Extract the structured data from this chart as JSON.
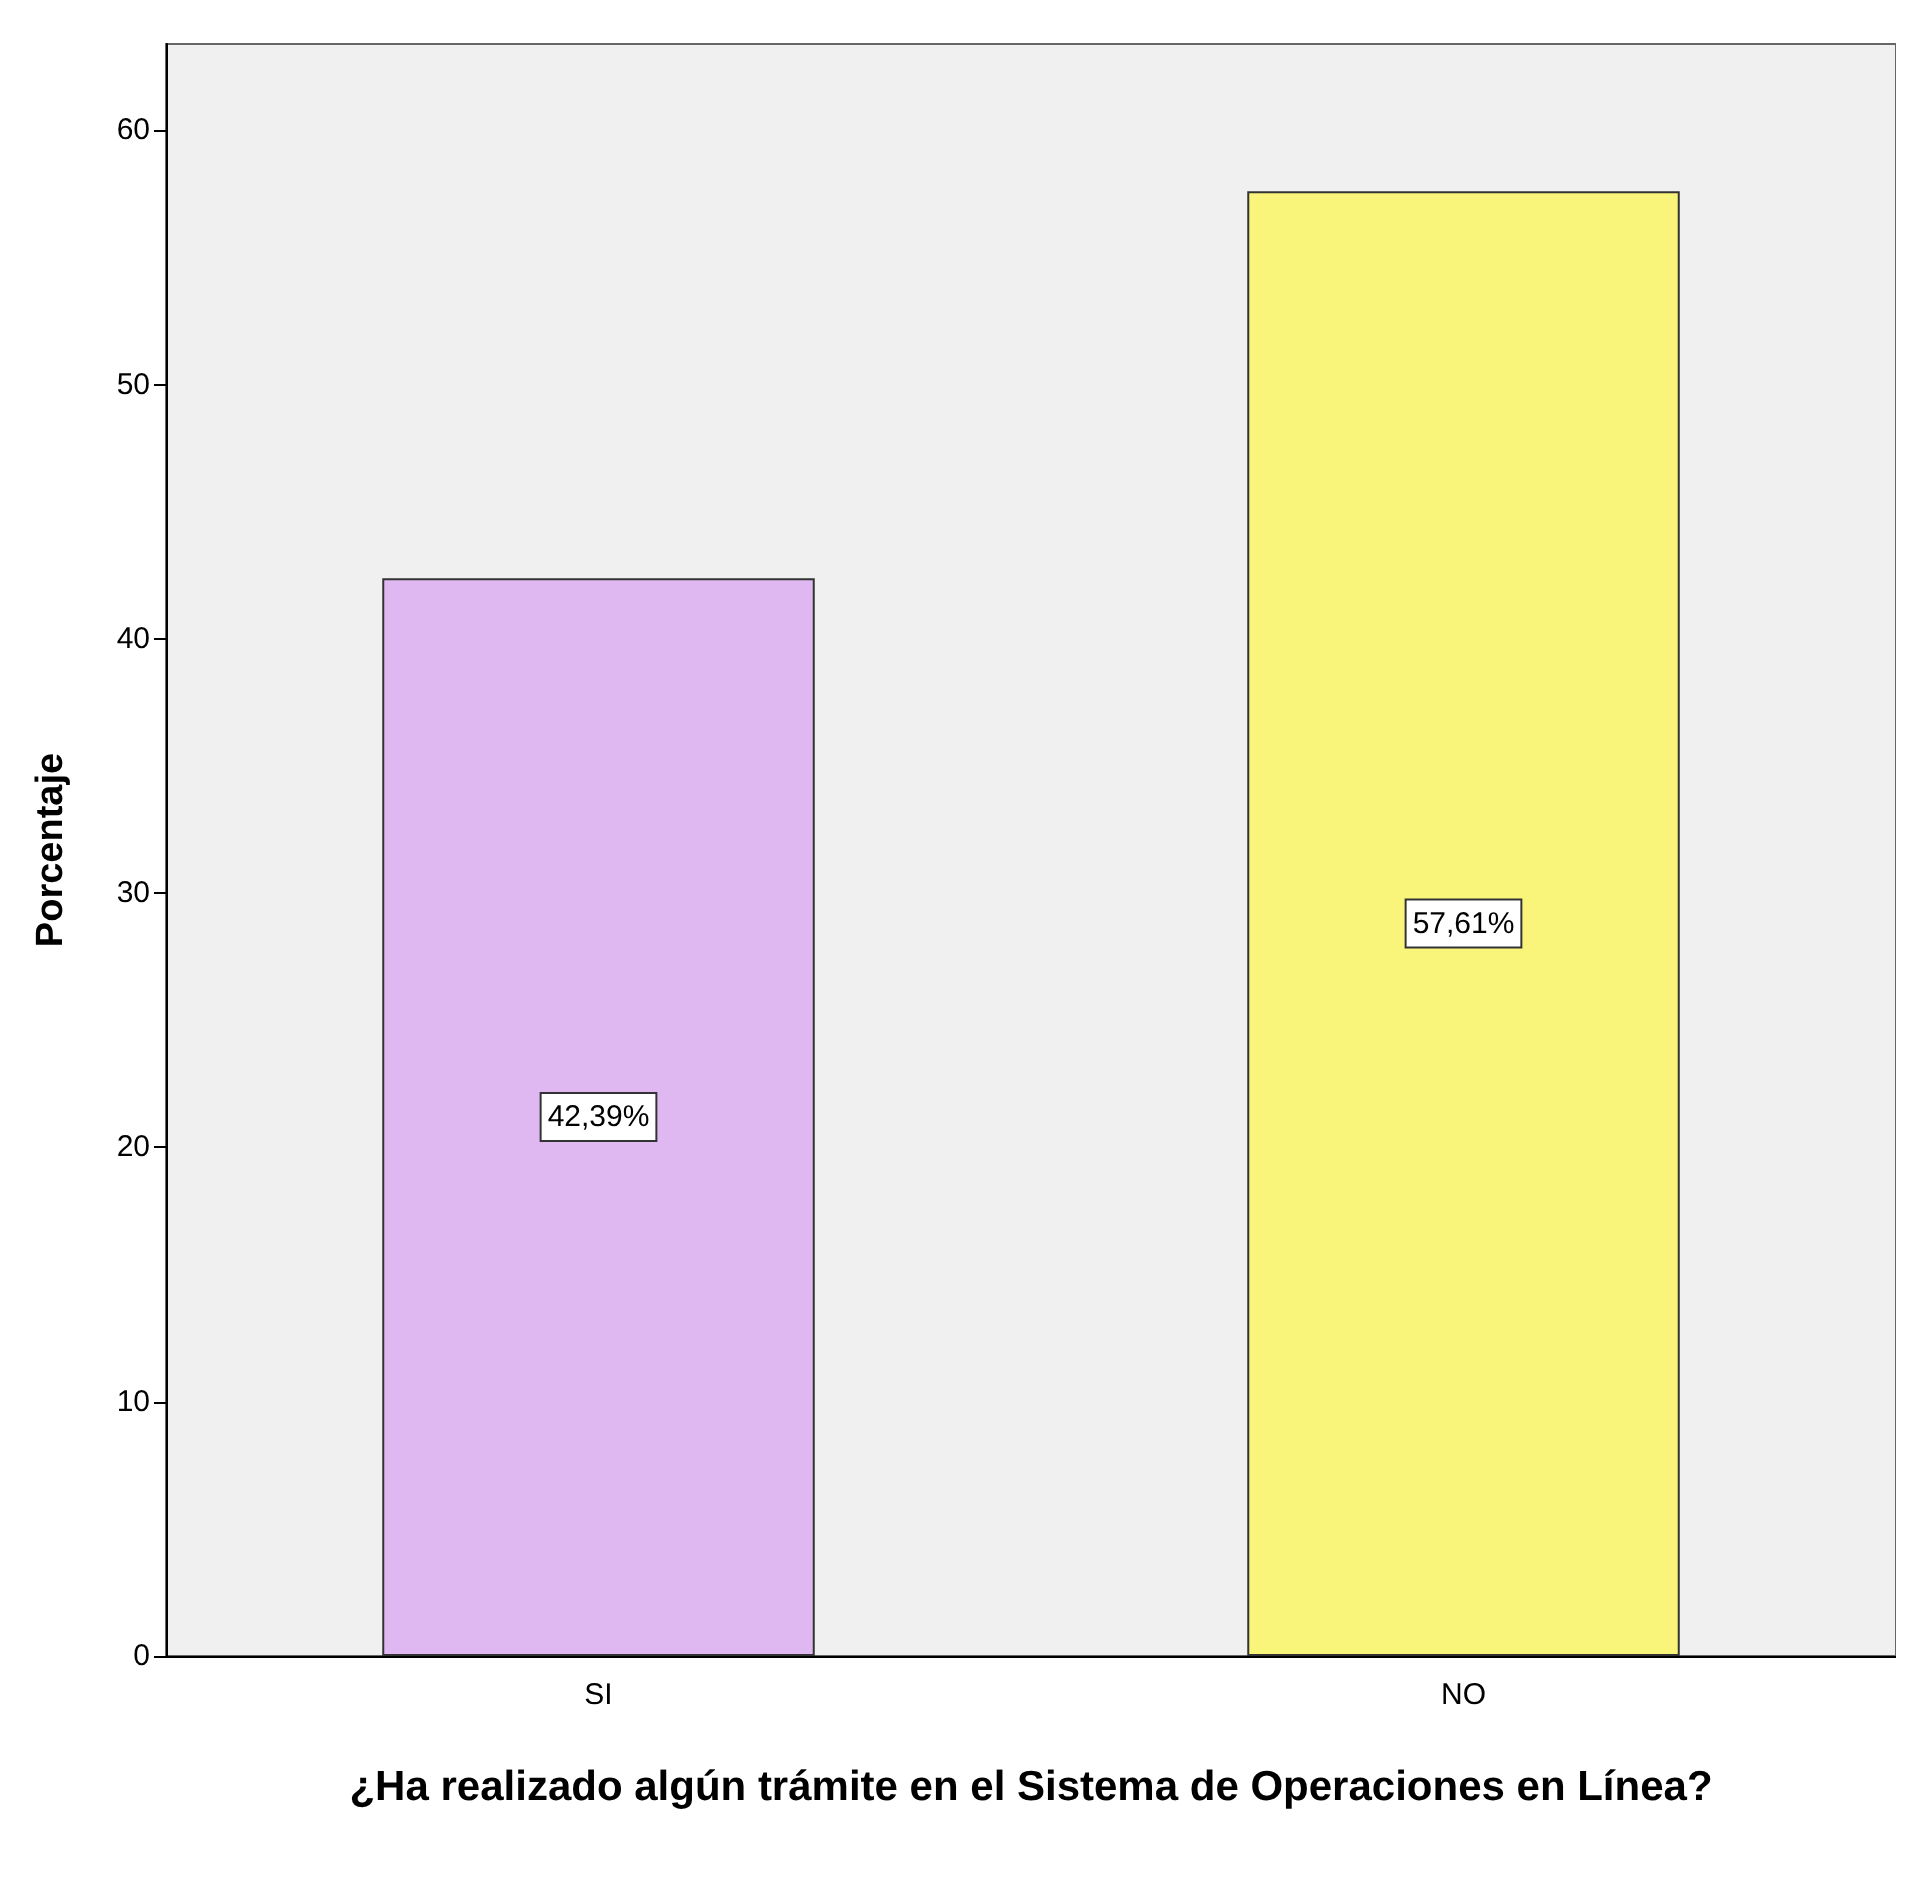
{
  "chart_data": {
    "type": "bar",
    "xlabel": "¿Ha realizado algún trámite en el Sistema de Operaciones en Línea?",
    "ylabel": "Porcentaje",
    "categories": [
      "SI",
      "NO"
    ],
    "values": [
      42.39,
      57.61
    ],
    "colors": [
      "#dfb8f2",
      "#f9f57a"
    ],
    "value_labels": [
      "42,39%",
      "57,61%"
    ],
    "ylim": [
      0,
      63.4
    ],
    "yticks": [
      0,
      10,
      20,
      30,
      40,
      50,
      60
    ],
    "grid": false
  }
}
